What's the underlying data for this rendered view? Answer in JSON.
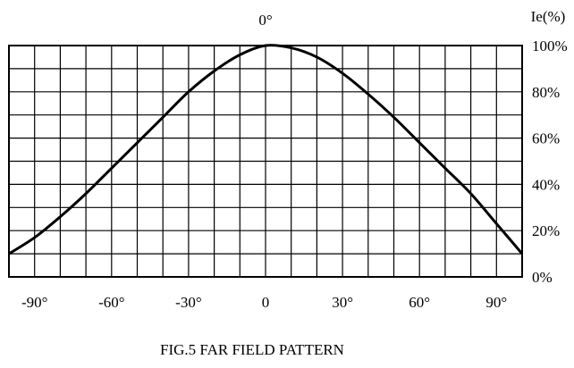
{
  "chart_data": {
    "type": "line",
    "title": "FIG.5 FAR FIELD PATTERN",
    "top_label": "0°",
    "ylabel": "Ie(%)",
    "xlim": [
      -100,
      100
    ],
    "ylim": [
      0,
      100
    ],
    "x_ticks": [
      {
        "value": -90,
        "label": "-90°"
      },
      {
        "value": -60,
        "label": "-60°"
      },
      {
        "value": -30,
        "label": "-30°"
      },
      {
        "value": 0,
        "label": "0"
      },
      {
        "value": 30,
        "label": "30°"
      },
      {
        "value": 60,
        "label": "60°"
      },
      {
        "value": 90,
        "label": "90°"
      }
    ],
    "y_ticks": [
      {
        "value": 0,
        "label": "0%"
      },
      {
        "value": 20,
        "label": "20%"
      },
      {
        "value": 40,
        "label": "40%"
      },
      {
        "value": 60,
        "label": "60%"
      },
      {
        "value": 80,
        "label": "80%"
      },
      {
        "value": 100,
        "label": "100%"
      }
    ],
    "grid": true,
    "grid_x_step": 10,
    "grid_y_step": 10,
    "series": [
      {
        "x": [
          -100,
          -90,
          -80,
          -70,
          -60,
          -50,
          -40,
          -30,
          -20,
          -10,
          0,
          10,
          20,
          30,
          40,
          50,
          60,
          70,
          80,
          90,
          100
        ],
        "y": [
          10,
          17,
          26,
          36,
          47,
          58,
          69,
          80,
          89,
          96,
          100,
          99,
          95,
          88,
          79,
          69,
          58,
          47,
          36,
          23,
          10
        ]
      }
    ]
  }
}
